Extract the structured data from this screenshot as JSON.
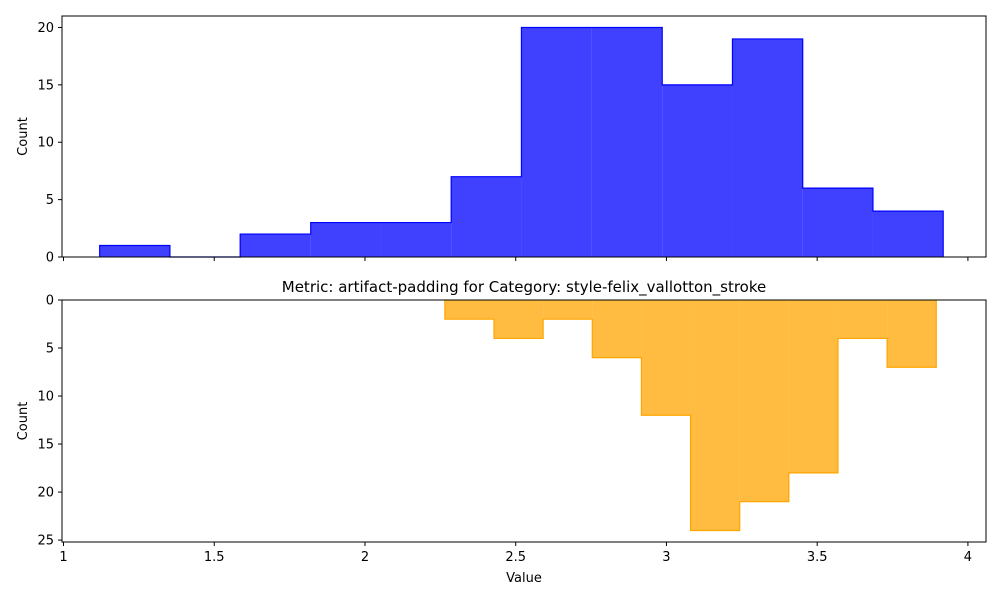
{
  "chart_data": [
    {
      "type": "histogram",
      "title": "",
      "xlabel": "",
      "ylabel": "Count",
      "xlim": [
        0.995,
        4.06
      ],
      "ylim": [
        0,
        21
      ],
      "y_inverted": false,
      "xticks": [
        1.0,
        1.5,
        2.0,
        2.5,
        3.0,
        3.5,
        4.0
      ],
      "xtick_labels_visible": false,
      "yticks": [
        0,
        5,
        10,
        15,
        20
      ],
      "grid": false,
      "series": [
        {
          "color": "#0000ff",
          "fill_opacity": 0.75,
          "bin_edges": [
            1.12,
            1.353,
            1.586,
            1.82,
            2.053,
            2.286,
            2.519,
            2.752,
            2.986,
            3.219,
            3.452,
            3.685,
            3.918
          ],
          "counts": [
            1,
            0,
            2,
            3,
            3,
            7,
            20,
            20,
            15,
            19,
            6,
            4
          ]
        }
      ]
    },
    {
      "type": "histogram",
      "title": "Metric: artifact-padding for Category: style-felix_vallotton_stroke",
      "xlabel": "Value",
      "ylabel": "Count",
      "xlim": [
        0.995,
        4.06
      ],
      "ylim": [
        0,
        25.2
      ],
      "y_inverted": true,
      "xticks": [
        1.0,
        1.5,
        2.0,
        2.5,
        3.0,
        3.5,
        4.0
      ],
      "xtick_labels_visible": true,
      "yticks": [
        0,
        5,
        10,
        15,
        20,
        25
      ],
      "grid": false,
      "series": [
        {
          "color": "#ffa500",
          "fill_opacity": 0.75,
          "bin_edges": [
            2.265,
            2.428,
            2.591,
            2.754,
            2.917,
            3.08,
            3.243,
            3.406,
            3.569,
            3.732,
            3.895
          ],
          "counts": [
            2,
            4,
            2,
            6,
            12,
            24,
            21,
            18,
            4,
            7
          ]
        }
      ]
    }
  ]
}
